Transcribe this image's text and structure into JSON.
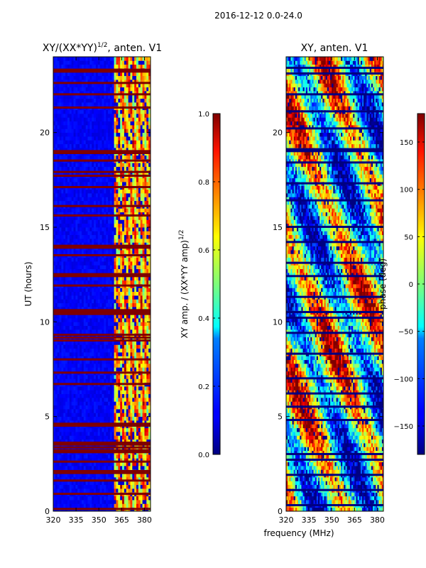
{
  "figure": {
    "suptitle": "2016-12-12 0.0-24.0",
    "shared_xlabel": "frequency (MHz)"
  },
  "chart_data": [
    {
      "type": "heatmap",
      "title": "XY/(XX*YY)",
      "title_sup": "1/2",
      "title_suffix": ", anten. V1",
      "ylabel": "UT (hours)",
      "xlim": [
        320,
        384
      ],
      "ylim": [
        0,
        24
      ],
      "xticks": [
        320,
        335,
        350,
        365,
        380
      ],
      "xtick_labels": [
        "320",
        "335",
        "350",
        "365",
        "380"
      ],
      "yticks": [
        0,
        5,
        10,
        15,
        20
      ],
      "ytick_labels": [
        "0",
        "5",
        "10",
        "15",
        "20"
      ],
      "colormap": "jet",
      "colorbar": {
        "label": "XY amp. / (XX*YY amp)",
        "label_sup": "1/2",
        "range": [
          0.0,
          1.0
        ],
        "ticks": [
          0.0,
          0.2,
          0.4,
          0.6,
          0.8,
          1.0
        ],
        "tick_labels": [
          "0.0",
          "0.2",
          "0.4",
          "0.6",
          "0.8",
          "1.0"
        ]
      },
      "flagged_hours": [
        0.1,
        0.9,
        1.6,
        2.0,
        2.1,
        2.6,
        3.1,
        3.2,
        3.35,
        3.5,
        3.6,
        4.5,
        4.6,
        6.7,
        7.3,
        8.0,
        9.0,
        9.15,
        9.3,
        10.4,
        10.5,
        10.6,
        11.9,
        12.4,
        12.5,
        13.5,
        13.9,
        14.0,
        15.6,
        16.1,
        17.1,
        17.7,
        17.9,
        18.5,
        18.9,
        19.0,
        21.3,
        22.0,
        22.6,
        23.2,
        23.3
      ],
      "band": {
        "low_freq_level": 0.12,
        "high_freq_level": 0.7,
        "edge_freq": 360
      }
    },
    {
      "type": "heatmap",
      "title": "XY, anten. V1",
      "xlim": [
        320,
        384
      ],
      "ylim": [
        0,
        24
      ],
      "xticks": [
        320,
        335,
        350,
        365,
        380
      ],
      "xtick_labels": [
        "320",
        "335",
        "350",
        "365",
        "380"
      ],
      "yticks": [
        0,
        5,
        10,
        15,
        20
      ],
      "ytick_labels": [
        "0",
        "5",
        "10",
        "15",
        "20"
      ],
      "colormap": "jet",
      "colorbar": {
        "label": "phase (deg)",
        "range": [
          -180,
          180
        ],
        "ticks": [
          150,
          100,
          50,
          0,
          -50,
          -100,
          -150
        ],
        "tick_labels": [
          "150",
          "100",
          "50",
          "0",
          "−50",
          "−100",
          "−150"
        ]
      },
      "flagged_hours": [
        0.3,
        1.1,
        1.9,
        2.7,
        3.0,
        4.8,
        5.5,
        6.2,
        7.0,
        8.3,
        9.4,
        10.2,
        10.5,
        11.3,
        12.4,
        13.1,
        14.2,
        15.0,
        16.4,
        17.3,
        18.4,
        19.0,
        19.1,
        20.2,
        21.1,
        22.0,
        23.1,
        23.4
      ]
    }
  ]
}
